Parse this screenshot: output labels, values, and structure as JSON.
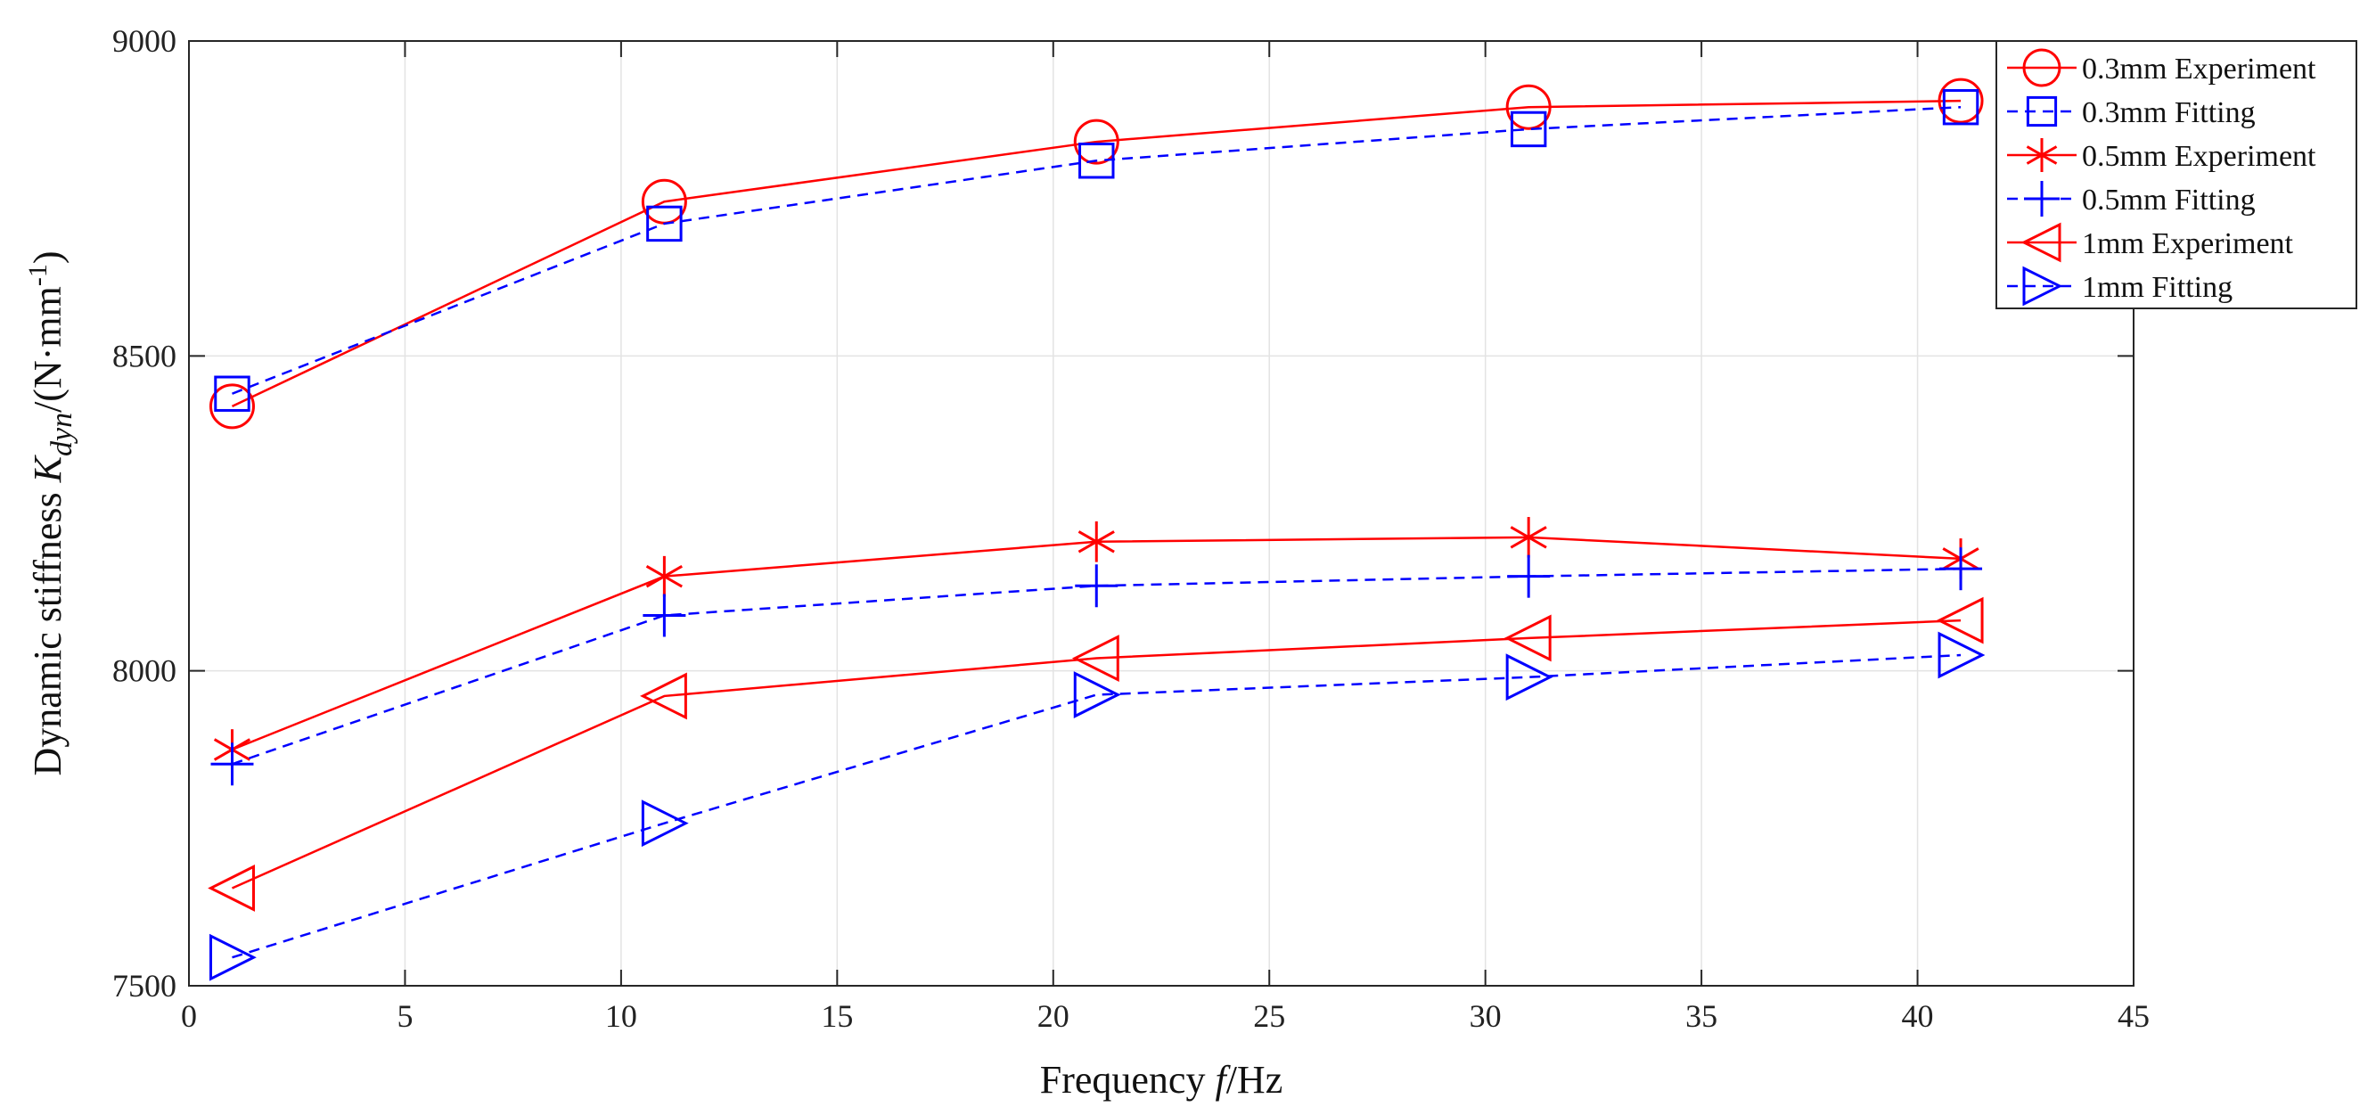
{
  "chart_data": {
    "type": "line",
    "title": "",
    "xlabel_parts": [
      "Frequency ",
      "f",
      "/Hz"
    ],
    "ylabel_parts": {
      "prefix": "Dynamic stiffness ",
      "symbol": "K",
      "subscript": "dyn",
      "unit_open": "/(N·mm",
      "superscript": "-1",
      "unit_close": ")"
    },
    "xlim": [
      0,
      45
    ],
    "ylim": [
      7500,
      9000
    ],
    "xticks": [
      0,
      5,
      10,
      15,
      20,
      25,
      30,
      35,
      40,
      45
    ],
    "yticks": [
      7500,
      8000,
      8500,
      9000
    ],
    "grid": true,
    "legend_position": "top-right outside",
    "x": [
      1,
      11,
      21,
      31,
      41
    ],
    "series": [
      {
        "name": "0.3mm Experiment",
        "values": [
          8420,
          8745,
          8840,
          8895,
          8905
        ],
        "color": "#ff0000",
        "dash": "solid",
        "marker": "circle"
      },
      {
        "name": "0.3mm Fitting",
        "values": [
          8440,
          8710,
          8810,
          8860,
          8895
        ],
        "color": "#0000ff",
        "dash": "dashed",
        "marker": "square"
      },
      {
        "name": "0.5mm Experiment",
        "values": [
          7875,
          8150,
          8205,
          8212,
          8178
        ],
        "color": "#ff0000",
        "dash": "solid",
        "marker": "asterisk"
      },
      {
        "name": "0.5mm Fitting",
        "values": [
          7852,
          8088,
          8135,
          8150,
          8162
        ],
        "color": "#0000ff",
        "dash": "dashed",
        "marker": "plus"
      },
      {
        "name": "1mm Experiment",
        "values": [
          7655,
          7960,
          8020,
          8052,
          8080
        ],
        "color": "#ff0000",
        "dash": "solid",
        "marker": "triangle-left"
      },
      {
        "name": "1mm Fitting",
        "values": [
          7545,
          7758,
          7962,
          7990,
          8025
        ],
        "color": "#0000ff",
        "dash": "dashed",
        "marker": "triangle-right"
      }
    ]
  }
}
